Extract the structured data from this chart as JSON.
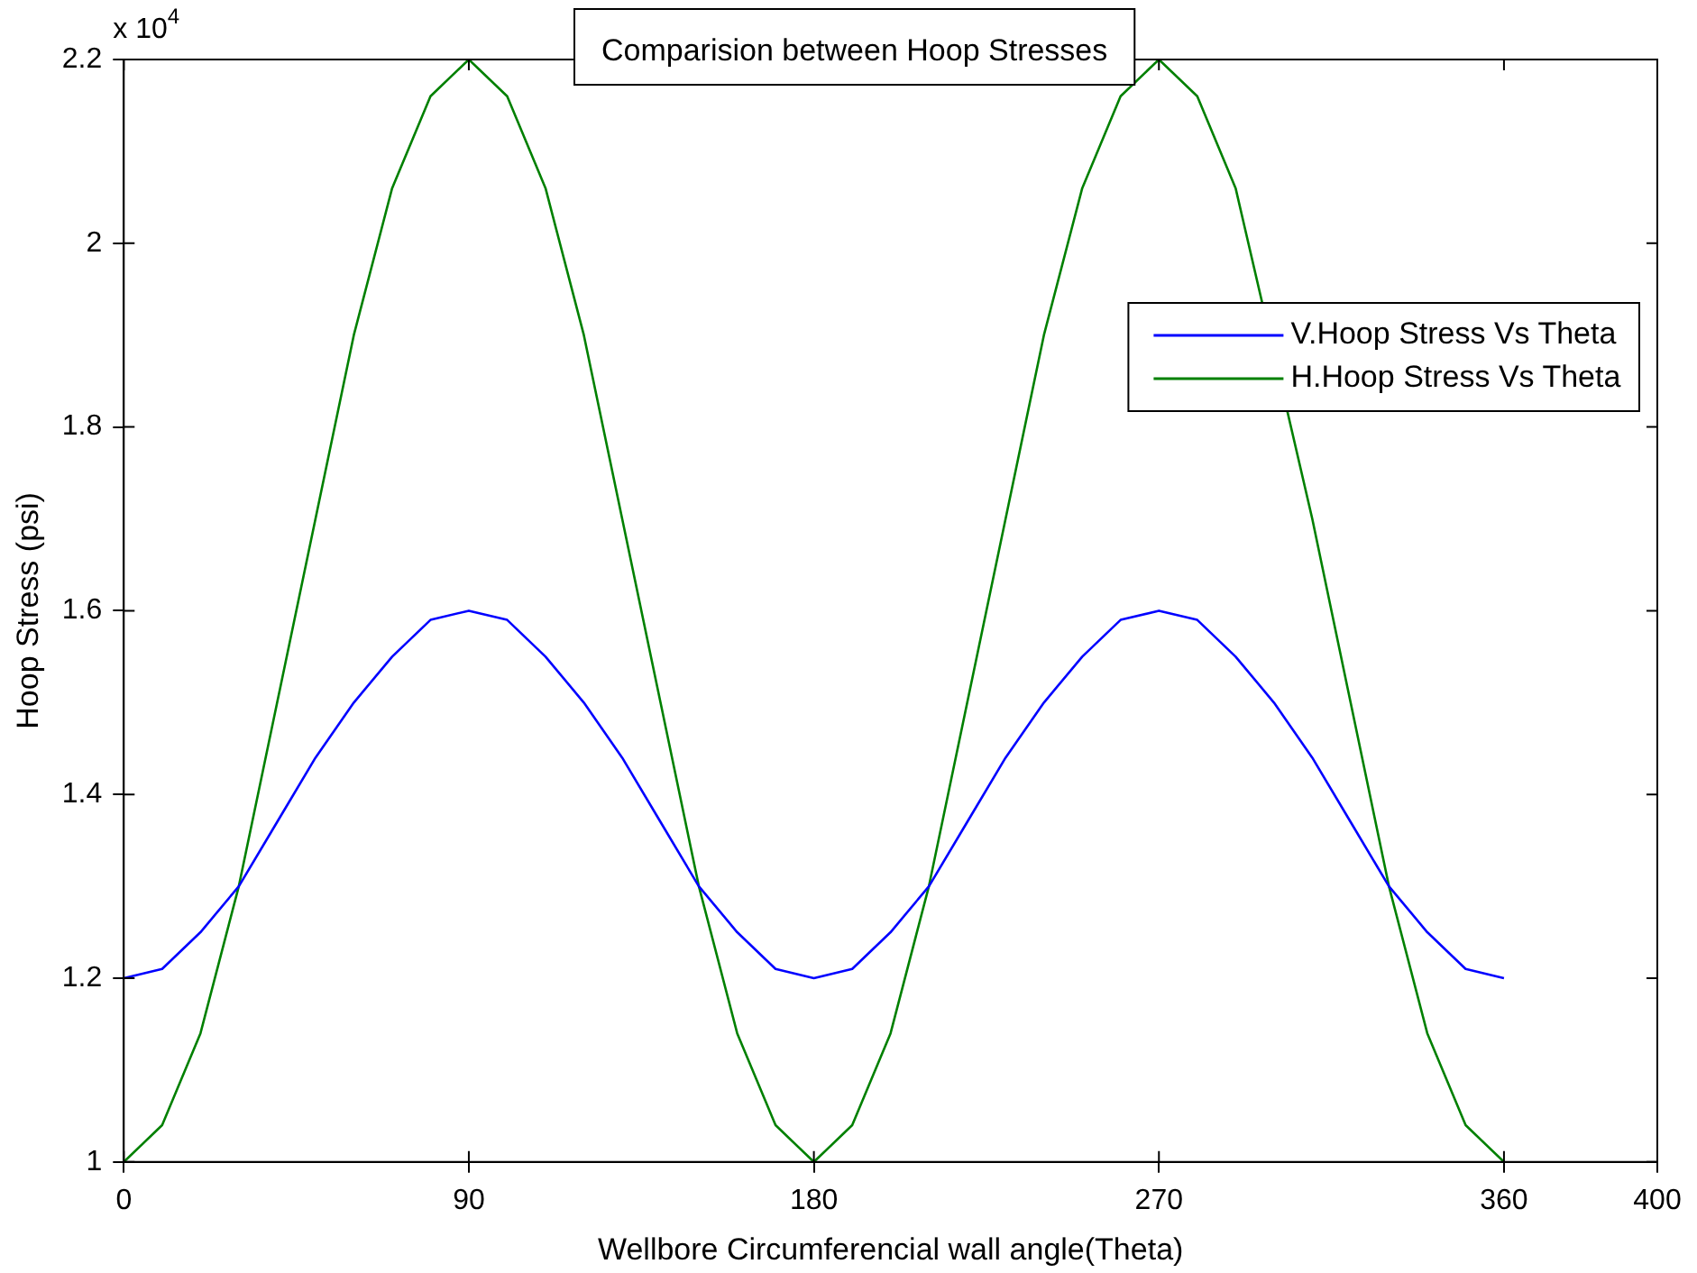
{
  "chart_data": {
    "type": "line",
    "title": "Comparision between Hoop Stresses",
    "xlabel": "Wellbore Circumferencial wall angle(Theta)",
    "ylabel": "Hoop Stress (psi)",
    "annotations": [
      "x 10$^{4}$"
    ],
    "x": [
      0,
      10,
      20,
      30,
      40,
      50,
      60,
      70,
      80,
      90,
      100,
      110,
      120,
      130,
      140,
      150,
      160,
      170,
      180,
      190,
      200,
      210,
      220,
      230,
      240,
      250,
      260,
      270,
      280,
      290,
      300,
      310,
      320,
      330,
      340,
      350,
      360
    ],
    "series": [
      {
        "name": "V.Hoop Stress Vs Theta",
        "color": "#0000ff",
        "values": [
          1.2,
          1.21,
          1.25,
          1.3,
          1.37,
          1.44,
          1.5,
          1.55,
          1.59,
          1.6,
          1.59,
          1.55,
          1.5,
          1.44,
          1.37,
          1.3,
          1.25,
          1.21,
          1.2,
          1.21,
          1.25,
          1.3,
          1.37,
          1.44,
          1.5,
          1.55,
          1.59,
          1.6,
          1.59,
          1.55,
          1.5,
          1.44,
          1.37,
          1.3,
          1.25,
          1.21,
          1.2
        ]
      },
      {
        "name": "H.Hoop Stress Vs Theta",
        "color": "#008000",
        "values": [
          1.0,
          1.04,
          1.14,
          1.3,
          1.5,
          1.7,
          1.9,
          2.06,
          2.16,
          2.2,
          2.16,
          2.06,
          1.9,
          1.7,
          1.5,
          1.3,
          1.14,
          1.04,
          1.0,
          1.04,
          1.14,
          1.3,
          1.5,
          1.7,
          1.9,
          2.06,
          2.16,
          2.2,
          2.16,
          2.06,
          null,
          1.7,
          1.5,
          1.3,
          1.14,
          1.04,
          1.0
        ]
      }
    ],
    "xlim": [
      0,
      400
    ],
    "xticks": [
      0,
      90,
      180,
      270,
      360,
      400
    ],
    "ylim": [
      1,
      2.2
    ],
    "yticks": [
      1,
      1.2,
      1.4,
      1.6,
      1.8,
      2,
      2.2
    ],
    "grid": false,
    "legend": "top right",
    "marker": "none",
    "line_style": "solid"
  }
}
